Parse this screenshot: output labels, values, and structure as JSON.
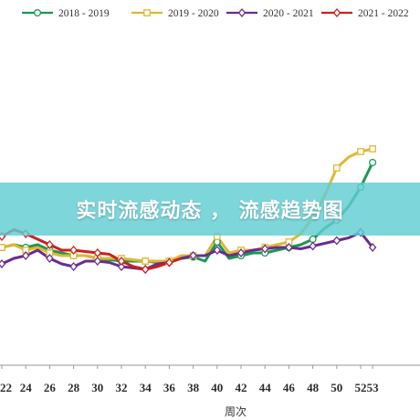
{
  "banner": {
    "text": "实时流感动态 ， 流感趋势图"
  },
  "chart_data": {
    "type": "line",
    "xlabel": "周次",
    "ylabel": "",
    "x": [
      22,
      23,
      24,
      25,
      26,
      27,
      28,
      29,
      30,
      31,
      32,
      33,
      34,
      35,
      36,
      37,
      38,
      39,
      40,
      41,
      42,
      43,
      44,
      45,
      46,
      47,
      48,
      49,
      50,
      51,
      52,
      53
    ],
    "x_tick_labels": [
      "22",
      "24",
      "26",
      "28",
      "30",
      "32",
      "34",
      "36",
      "38",
      "40",
      "42",
      "44",
      "46",
      "48",
      "50",
      "52",
      "53"
    ],
    "series": [
      {
        "name": "2018 - 2019",
        "color": "#1a9850",
        "marker": "circle",
        "values": [
          4.3,
          4.4,
          4.3,
          4.4,
          4.2,
          4.1,
          4.0,
          4.0,
          3.9,
          3.85,
          3.8,
          3.8,
          3.8,
          3.75,
          3.8,
          3.9,
          3.95,
          3.8,
          4.5,
          3.9,
          4.0,
          4.1,
          4.1,
          4.2,
          4.3,
          4.4,
          4.6,
          5.0,
          5.3,
          5.8,
          6.5,
          7.4
        ]
      },
      {
        "name": "2019 - 2020",
        "color": "#e0b832",
        "marker": "square",
        "values": [
          4.3,
          4.4,
          4.2,
          4.3,
          4.1,
          4.0,
          4.0,
          4.0,
          3.9,
          3.9,
          3.9,
          3.85,
          3.8,
          3.8,
          3.8,
          4.0,
          4.0,
          4.0,
          4.7,
          4.1,
          4.2,
          4.2,
          4.3,
          4.4,
          4.5,
          4.8,
          5.4,
          6.2,
          7.2,
          7.6,
          7.8,
          7.9
        ]
      },
      {
        "name": "2020 - 2021",
        "color": "#6a2c91",
        "marker": "diamond",
        "values": [
          3.7,
          3.9,
          4.0,
          4.2,
          3.9,
          3.7,
          3.6,
          3.8,
          3.8,
          3.75,
          3.6,
          3.55,
          3.5,
          3.7,
          3.75,
          3.9,
          4.0,
          4.0,
          4.2,
          4.0,
          4.1,
          4.2,
          4.25,
          4.3,
          4.3,
          4.25,
          4.35,
          4.45,
          4.55,
          4.65,
          4.85,
          4.3
        ]
      },
      {
        "name": "2021 - 2022",
        "color": "#cc1f1f",
        "marker": "diamond",
        "values": [
          4.7,
          4.95,
          4.8,
          4.6,
          4.4,
          4.2,
          4.2,
          4.15,
          4.1,
          4.05,
          3.8,
          3.6,
          3.5,
          3.6,
          3.75,
          3.9,
          null,
          null,
          null,
          null,
          null,
          null,
          null,
          null,
          null,
          null,
          null,
          null,
          null,
          null,
          null,
          null
        ]
      }
    ],
    "legend": {
      "position": "top"
    },
    "grid": false
  }
}
